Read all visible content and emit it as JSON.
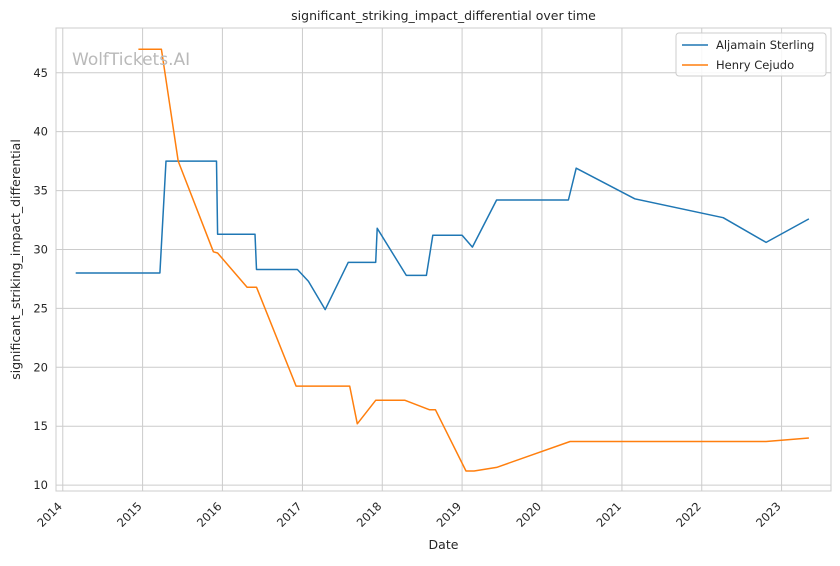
{
  "chart_data": {
    "type": "line",
    "title": "significant_striking_impact_differential over time",
    "xlabel": "Date",
    "ylabel": "significant_striking_impact_differential",
    "xlim": [
      "2013-12-01",
      "2023-08-15"
    ],
    "ylim": [
      9.5,
      48.8
    ],
    "x_ticks": [
      "2014",
      "2015",
      "2016",
      "2017",
      "2018",
      "2019",
      "2020",
      "2021",
      "2022",
      "2023"
    ],
    "y_ticks": [
      10,
      15,
      20,
      25,
      30,
      35,
      40,
      45
    ],
    "grid": true,
    "legend_position": "top-right",
    "watermark": "WolfTickets.AI",
    "series": [
      {
        "name": "Aljamain Sterling",
        "color": "#1f77b4",
        "points": [
          [
            "2014-03-01",
            28.0
          ],
          [
            "2015-03-21",
            28.0
          ],
          [
            "2015-04-18",
            37.5
          ],
          [
            "2015-12-05",
            37.5
          ],
          [
            "2015-12-10",
            31.3
          ],
          [
            "2016-05-29",
            31.3
          ],
          [
            "2016-06-05",
            28.3
          ],
          [
            "2016-12-09",
            28.3
          ],
          [
            "2017-01-28",
            27.3
          ],
          [
            "2017-04-15",
            24.9
          ],
          [
            "2017-07-29",
            28.9
          ],
          [
            "2017-12-02",
            28.9
          ],
          [
            "2017-12-09",
            31.8
          ],
          [
            "2018-04-21",
            27.8
          ],
          [
            "2018-07-22",
            27.8
          ],
          [
            "2018-08-20",
            31.2
          ],
          [
            "2019-01-01",
            31.2
          ],
          [
            "2019-02-17",
            30.2
          ],
          [
            "2019-06-08",
            34.2
          ],
          [
            "2020-05-01",
            34.2
          ],
          [
            "2020-06-06",
            36.9
          ],
          [
            "2021-03-01",
            34.3
          ],
          [
            "2022-04-09",
            32.7
          ],
          [
            "2022-10-22",
            30.6
          ],
          [
            "2023-05-06",
            32.6
          ]
        ]
      },
      {
        "name": "Henry Cejudo",
        "color": "#ff7f0e",
        "points": [
          [
            "2014-12-13",
            47.0
          ],
          [
            "2015-03-28",
            47.0
          ],
          [
            "2015-06-13",
            37.5
          ],
          [
            "2015-11-21",
            29.8
          ],
          [
            "2015-12-10",
            29.7
          ],
          [
            "2016-04-23",
            26.8
          ],
          [
            "2016-06-05",
            26.8
          ],
          [
            "2016-12-03",
            18.4
          ],
          [
            "2017-08-05",
            18.4
          ],
          [
            "2017-09-09",
            15.2
          ],
          [
            "2017-12-02",
            17.2
          ],
          [
            "2018-04-15",
            17.2
          ],
          [
            "2018-08-04",
            16.4
          ],
          [
            "2018-09-01",
            16.4
          ],
          [
            "2019-01-19",
            11.2
          ],
          [
            "2019-02-25",
            11.2
          ],
          [
            "2019-06-08",
            11.5
          ],
          [
            "2020-05-09",
            13.7
          ],
          [
            "2022-10-22",
            13.7
          ],
          [
            "2023-05-06",
            14.0
          ]
        ]
      }
    ]
  }
}
